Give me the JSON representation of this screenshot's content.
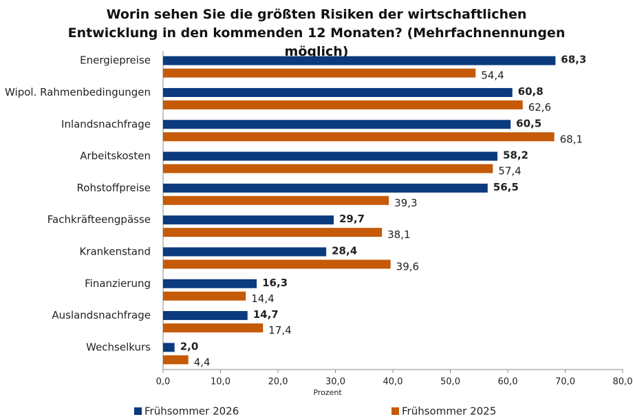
{
  "chart_data": {
    "type": "bar",
    "orientation": "horizontal",
    "title": "Worin sehen Sie die größten Risiken der wirtschaftlichen Entwicklung in den kommenden 12 Monaten? (Mehrfachnennungen möglich)",
    "x_label": "Prozent",
    "categories": [
      "Energiepreise",
      "Wipol. Rahmenbedingungen",
      "Inlandsnachfrage",
      "Arbeitskosten",
      "Rohstoffpreise",
      "Fachkräfteengpässe",
      "Krankenstand",
      "Finanzierung",
      "Auslandsnachfrage",
      "Wechselkurs"
    ],
    "series": [
      {
        "name": "Frühsommer 2026",
        "color": "#0b3a7e",
        "values": [
          68.3,
          60.8,
          60.5,
          58.2,
          56.5,
          29.7,
          28.4,
          16.3,
          14.7,
          2.0
        ],
        "value_labels": [
          "68,3",
          "60,8",
          "60,5",
          "58,2",
          "56,5",
          "29,7",
          "28,4",
          "16,3",
          "14,7",
          "2,0"
        ]
      },
      {
        "name": "Frühsommer 2025",
        "color": "#c55a08",
        "values": [
          54.4,
          62.6,
          68.1,
          57.4,
          39.3,
          38.1,
          39.6,
          14.4,
          17.4,
          4.4
        ],
        "value_labels": [
          "54,4",
          "62,6",
          "68,1",
          "57,4",
          "39,3",
          "38,1",
          "39,6",
          "14,4",
          "17,4",
          "4,4"
        ]
      }
    ],
    "xlim": [
      0,
      80
    ],
    "xticks": [
      {
        "value": 0,
        "label": "0,0"
      },
      {
        "value": 10,
        "label": "10,0"
      },
      {
        "value": 20,
        "label": "20,0"
      },
      {
        "value": 30,
        "label": "30,0"
      },
      {
        "value": 40,
        "label": "40,0"
      },
      {
        "value": 50,
        "label": "50,0"
      },
      {
        "value": 60,
        "label": "60,0"
      },
      {
        "value": 70,
        "label": "70,0"
      },
      {
        "value": 80,
        "label": "80,0"
      }
    ],
    "grid": false,
    "legend": "bottom"
  }
}
